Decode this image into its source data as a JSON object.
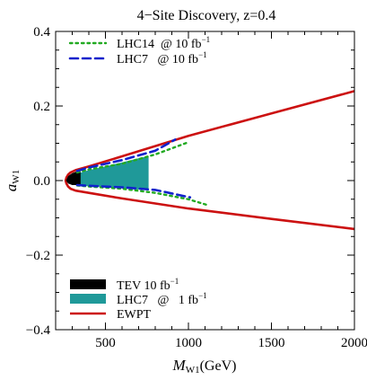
{
  "chart_data": {
    "type": "line",
    "title": "4−Site Discovery, z=0.4",
    "xlabel": {
      "main": "M",
      "sub": "W1",
      "unit": "(GeV)"
    },
    "ylabel": {
      "main": "a",
      "sub": "W1"
    },
    "xlim": [
      200,
      2000
    ],
    "ylim": [
      -0.4,
      0.4
    ],
    "xticks": [
      500,
      1000,
      1500,
      2000
    ],
    "xtick_labels": [
      "500",
      "1000",
      "1500",
      "2000"
    ],
    "yticks": [
      -0.4,
      -0.2,
      0.0,
      0.2,
      0.4
    ],
    "ytick_labels": [
      "−0.4",
      "−0.2",
      "0.0",
      "0.2",
      "0.4"
    ],
    "grid": false,
    "legends": {
      "top_left": [
        {
          "label": "LHC14  @ 10 fb",
          "sup": "−1",
          "series": "LHC14"
        },
        {
          "label": "LHC7   @ 10 fb",
          "sup": "−1",
          "series": "LHC7_10"
        }
      ],
      "bottom_left": [
        {
          "label": "TEV 10 fb",
          "sup": "−1",
          "series": "TEV"
        },
        {
          "label": "LHC7   @   1 fb",
          "sup": "−1",
          "series": "LHC7_1"
        },
        {
          "label": "EWPT",
          "sup": "",
          "series": "EWPT"
        }
      ]
    },
    "series": [
      {
        "id": "EWPT",
        "style": "line",
        "color": "#cc1111",
        "upper": {
          "x": [
            260,
            265,
            275,
            290,
            320,
            400,
            600,
            1000,
            1500,
            2000
          ],
          "y": [
            0.0,
            0.008,
            0.016,
            0.022,
            0.028,
            0.038,
            0.065,
            0.12,
            0.18,
            0.24
          ]
        },
        "lower": {
          "x": [
            260,
            265,
            275,
            290,
            320,
            400,
            600,
            1000,
            1500,
            2000
          ],
          "y": [
            0.0,
            -0.008,
            -0.016,
            -0.022,
            -0.027,
            -0.033,
            -0.048,
            -0.075,
            -0.103,
            -0.13
          ]
        }
      },
      {
        "id": "LHC14",
        "style": "dotted",
        "color": "#22aa22",
        "upper": {
          "x": [
            330,
            400,
            600,
            800,
            1000
          ],
          "y": [
            0.022,
            0.03,
            0.045,
            0.07,
            0.103
          ]
        },
        "lower": {
          "x": [
            330,
            400,
            600,
            800,
            1000,
            1110
          ],
          "y": [
            -0.013,
            -0.016,
            -0.022,
            -0.033,
            -0.05,
            -0.065
          ]
        }
      },
      {
        "id": "LHC7_10",
        "style": "dashed",
        "color": "#1122cc",
        "upper": {
          "x": [
            330,
            400,
            600,
            800,
            920
          ],
          "y": [
            0.026,
            0.035,
            0.055,
            0.08,
            0.11
          ]
        },
        "lower": {
          "x": [
            330,
            400,
            600,
            800,
            1010
          ],
          "y": [
            -0.012,
            -0.014,
            -0.018,
            -0.025,
            -0.045
          ]
        }
      },
      {
        "id": "LHC7_1",
        "style": "fill",
        "color": "#1f9999",
        "upper": {
          "x": [
            340,
            400,
            500,
            600,
            700,
            760
          ],
          "y": [
            0.02,
            0.028,
            0.038,
            0.049,
            0.06,
            0.066
          ]
        },
        "lower": {
          "x": [
            340,
            400,
            500,
            600,
            700,
            760
          ],
          "y": [
            -0.014,
            -0.015,
            -0.017,
            -0.02,
            -0.024,
            -0.026
          ]
        }
      },
      {
        "id": "TEV",
        "style": "fill",
        "color": "#000000",
        "upper": {
          "x": [
            262,
            275,
            300,
            330,
            350
          ],
          "y": [
            0.0,
            0.012,
            0.02,
            0.025,
            0.028
          ]
        },
        "lower": {
          "x": [
            262,
            275,
            300,
            330,
            350
          ],
          "y": [
            0.0,
            -0.008,
            -0.012,
            -0.012,
            -0.012
          ]
        }
      }
    ]
  }
}
